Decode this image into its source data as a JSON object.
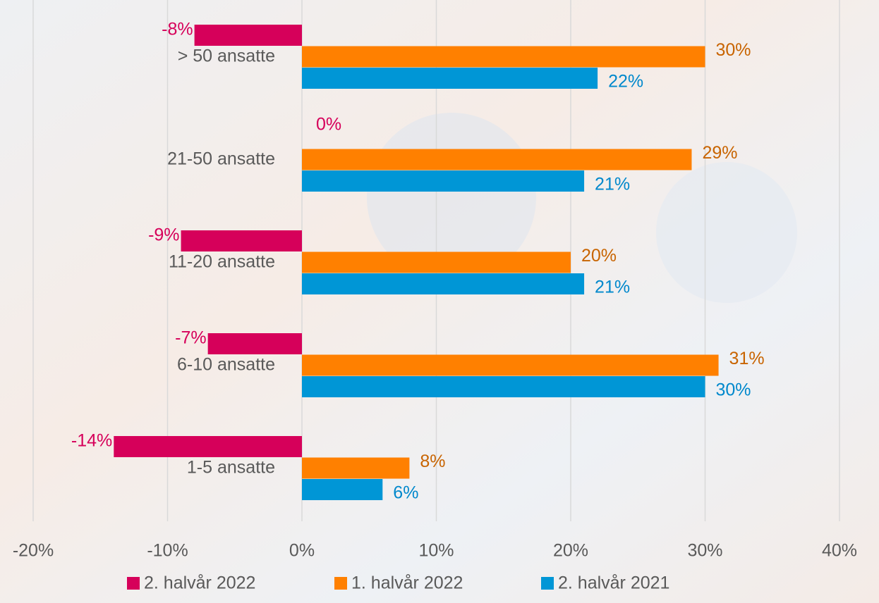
{
  "chart_data": {
    "type": "bar",
    "orientation": "horizontal",
    "categories": [
      "> 50 ansatte",
      "21-50 ansatte",
      "11-20 ansatte",
      "6-10 ansatte",
      "1-5 ansatte"
    ],
    "series": [
      {
        "name": "2. halvår 2022",
        "color": "#d6005a",
        "label_color": "#d6005a",
        "values": [
          -8,
          0,
          -9,
          -7,
          -14
        ],
        "value_labels": [
          "-8%",
          "0%",
          "-9%",
          "-7%",
          "-14%"
        ]
      },
      {
        "name": "1. halvår 2022",
        "color": "#ff8000",
        "label_color": "#c86400",
        "values": [
          30,
          29,
          20,
          31,
          8
        ],
        "value_labels": [
          "30%",
          "29%",
          "20%",
          "31%",
          "8%"
        ]
      },
      {
        "name": "2. halvår 2021",
        "color": "#0096d6",
        "label_color": "#0088cc",
        "values": [
          22,
          21,
          21,
          30,
          6
        ],
        "value_labels": [
          "22%",
          "21%",
          "21%",
          "30%",
          "6%"
        ]
      }
    ],
    "xlim": [
      -20,
      40
    ],
    "xticks": [
      {
        "value": -20,
        "label": "-20%"
      },
      {
        "value": -10,
        "label": "-10%"
      },
      {
        "value": 0,
        "label": "0%"
      },
      {
        "value": 10,
        "label": "10%"
      },
      {
        "value": 20,
        "label": "20%"
      },
      {
        "value": 30,
        "label": "30%"
      },
      {
        "value": 40,
        "label": "40%"
      }
    ],
    "grid": true,
    "legend": "bottom"
  }
}
